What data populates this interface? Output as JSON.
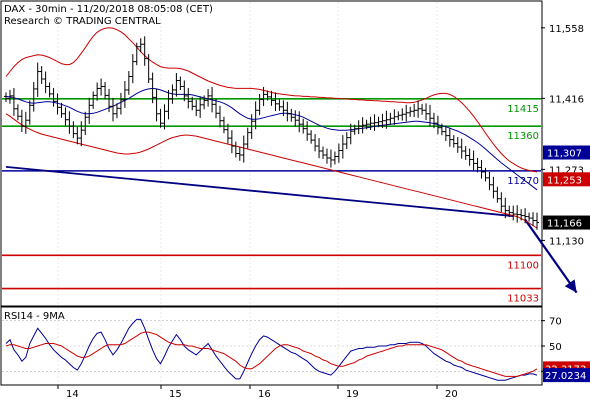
{
  "header": {
    "title": "DAX - 30min - 11/20/2018 08:05:08 (CET)",
    "subtitle": "Research © TRADING CENTRAL"
  },
  "chart_data": [
    {
      "type": "candlestick",
      "panel": "price",
      "x_ticks": [
        "14",
        "15",
        "16",
        "19",
        "20"
      ],
      "y_ticks": [
        11558,
        11416,
        11273,
        11130
      ],
      "y_tick_labels": [
        "11,558",
        "11,416",
        "11,273",
        "11,130"
      ],
      "ylim": [
        11000,
        11610
      ],
      "levels": [
        {
          "label": "11415",
          "value": 11415,
          "color": "#009900"
        },
        {
          "label": "11360",
          "value": 11360,
          "color": "#009900"
        },
        {
          "label": "11270",
          "value": 11270,
          "color": "#000099"
        },
        {
          "label": "11100",
          "value": 11100,
          "color": "#cc0000"
        },
        {
          "label": "11033",
          "value": 11033,
          "color": "#cc0000"
        }
      ],
      "price_tags": [
        {
          "label": "11,307",
          "value": 11307,
          "bg": "#000099",
          "fg": "#ffffff"
        },
        {
          "label": "11,253",
          "value": 11253,
          "bg": "#cc0000",
          "fg": "#ffffff"
        },
        {
          "label": "11,166",
          "value": 11166,
          "bg": "#000000",
          "fg": "#ffffff"
        }
      ],
      "trendline": {
        "from": [
          0,
          11278
        ],
        "to": [
          128,
          11179
        ]
      },
      "forecast_arrow": {
        "from": [
          131,
          11172
        ],
        "to": [
          144,
          11025
        ]
      },
      "closes": [
        11416,
        11421,
        11395,
        11380,
        11360,
        11372,
        11402,
        11435,
        11470,
        11455,
        11440,
        11425,
        11410,
        11398,
        11385,
        11373,
        11360,
        11345,
        11336,
        11352,
        11378,
        11402,
        11422,
        11436,
        11440,
        11422,
        11400,
        11385,
        11396,
        11413,
        11433,
        11460,
        11490,
        11520,
        11525,
        11496,
        11455,
        11418,
        11385,
        11366,
        11390,
        11415,
        11433,
        11452,
        11440,
        11421,
        11410,
        11400,
        11392,
        11403,
        11412,
        11421,
        11404,
        11386,
        11371,
        11353,
        11336,
        11320,
        11305,
        11302,
        11324,
        11347,
        11370,
        11392,
        11414,
        11424,
        11419,
        11412,
        11405,
        11399,
        11392,
        11385,
        11378,
        11372,
        11364,
        11355,
        11344,
        11332,
        11320,
        11310,
        11302,
        11296,
        11292,
        11299,
        11311,
        11324,
        11337,
        11350,
        11355,
        11360,
        11362,
        11364,
        11366,
        11367,
        11369,
        11371,
        11373,
        11376,
        11379,
        11382,
        11384,
        11387,
        11390,
        11392,
        11395,
        11392,
        11385,
        11376,
        11366,
        11357,
        11349,
        11341,
        11333,
        11325,
        11318,
        11310,
        11301,
        11293,
        11285,
        11277,
        11268,
        11256,
        11242,
        11229,
        11214,
        11199,
        11190,
        11186,
        11183,
        11182,
        11180,
        11178,
        11175,
        11170,
        11166
      ],
      "bollinger_upper": [
        11460,
        11470,
        11480,
        11488,
        11494,
        11498,
        11500,
        11502,
        11504,
        11503,
        11501,
        11498,
        11494,
        11490,
        11486,
        11484,
        11484,
        11488,
        11496,
        11507,
        11518,
        11530,
        11541,
        11549,
        11554,
        11557,
        11558,
        11557,
        11554,
        11550,
        11544,
        11536,
        11528,
        11519,
        11510,
        11502,
        11495,
        11489,
        11484,
        11480,
        11478,
        11477,
        11477,
        11477,
        11476,
        11474,
        11471,
        11467,
        11463,
        11459,
        11455,
        11451,
        11448,
        11445,
        11442,
        11440,
        11438,
        11437,
        11436,
        11436,
        11436,
        11436,
        11436,
        11435,
        11434,
        11432,
        11430,
        11428,
        11426,
        11425,
        11424,
        11423,
        11422,
        11421,
        11421,
        11420,
        11420,
        11419,
        11419,
        11418,
        11418,
        11417,
        11417,
        11416,
        11416,
        11415,
        11415,
        11414,
        11414,
        11413,
        11413,
        11412,
        11412,
        11411,
        11411,
        11410,
        11410,
        11409,
        11409,
        11408,
        11408,
        11407,
        11407,
        11408,
        11410,
        11413,
        11416,
        11420,
        11423,
        11425,
        11426,
        11426,
        11424,
        11420,
        11414,
        11407,
        11399,
        11390,
        11380,
        11369,
        11358,
        11346,
        11335,
        11324,
        11314,
        11305,
        11297,
        11290,
        11285,
        11280,
        11276,
        11273,
        11271,
        11269,
        11268
      ],
      "bollinger_lower": [
        11385,
        11380,
        11374,
        11368,
        11363,
        11358,
        11354,
        11350,
        11347,
        11344,
        11342,
        11340,
        11338,
        11336,
        11334,
        11332,
        11330,
        11328,
        11326,
        11324,
        11322,
        11320,
        11318,
        11316,
        11314,
        11312,
        11310,
        11308,
        11306,
        11305,
        11304,
        11304,
        11305,
        11306,
        11308,
        11311,
        11314,
        11318,
        11322,
        11326,
        11330,
        11334,
        11337,
        11339,
        11341,
        11342,
        11342,
        11341,
        11340,
        11338,
        11336,
        11334,
        11332,
        11330,
        11328,
        11326,
        11324,
        11322,
        11320,
        11318,
        11316,
        11314,
        11312,
        11310,
        11308,
        11306,
        11304,
        11302,
        11300,
        11298,
        11296,
        11294,
        11292,
        11290,
        11288,
        11286,
        11284,
        11282,
        11280,
        11278,
        11276,
        11274,
        11272,
        11270,
        11268,
        11266,
        11264,
        11262,
        11260,
        11258,
        11256,
        11254,
        11252,
        11250,
        11248,
        11246,
        11244,
        11242,
        11240,
        11238,
        11236,
        11234,
        11232,
        11230,
        11228,
        11226,
        11224,
        11222,
        11220,
        11218,
        11216,
        11214,
        11212,
        11210,
        11208,
        11206,
        11204,
        11202,
        11200,
        11198,
        11196,
        11194,
        11192,
        11190,
        11188,
        11186,
        11184,
        11182,
        11180,
        11178,
        11174,
        11170,
        11165,
        11160,
        11155
      ],
      "moving_average": [
        11420,
        11419,
        11417,
        11415,
        11412,
        11409,
        11407,
        11406,
        11407,
        11408,
        11409,
        11409,
        11408,
        11406,
        11404,
        11401,
        11398,
        11394,
        11390,
        11387,
        11385,
        11385,
        11386,
        11388,
        11391,
        11394,
        11397,
        11400,
        11404,
        11408,
        11412,
        11416,
        11421,
        11426,
        11430,
        11433,
        11435,
        11436,
        11435,
        11433,
        11430,
        11427,
        11425,
        11424,
        11424,
        11424,
        11424,
        11423,
        11421,
        11419,
        11417,
        11415,
        11413,
        11411,
        11409,
        11406,
        11402,
        11397,
        11391,
        11385,
        11380,
        11376,
        11374,
        11374,
        11375,
        11377,
        11379,
        11381,
        11383,
        11385,
        11386,
        11386,
        11385,
        11383,
        11381,
        11378,
        11374,
        11370,
        11366,
        11362,
        11359,
        11356,
        11354,
        11353,
        11352,
        11352,
        11352,
        11353,
        11354,
        11355,
        11356,
        11357,
        11358,
        11360,
        11361,
        11362,
        11363,
        11364,
        11365,
        11366,
        11367,
        11368,
        11369,
        11370,
        11370,
        11369,
        11368,
        11367,
        11365,
        11363,
        11361,
        11359,
        11356,
        11353,
        11350,
        11346,
        11342,
        11337,
        11332,
        11327,
        11321,
        11314,
        11307,
        11300,
        11293,
        11286,
        11280,
        11274,
        11268,
        11262,
        11256,
        11250,
        11244,
        11238,
        11232
      ]
    },
    {
      "type": "line",
      "panel": "indicator",
      "title": "RSI14 - 9MA",
      "y_ticks": [
        70,
        50,
        30
      ],
      "ylim": [
        20,
        80
      ],
      "price_tags": [
        {
          "label": "32.3173",
          "value": 32.3173,
          "bg": "#cc0000",
          "fg": "#ffffff"
        },
        {
          "label": "27.0234",
          "value": 27.0234,
          "bg": "#000099",
          "fg": "#ffffff"
        }
      ],
      "series": [
        {
          "name": "RSI14",
          "color": "#000099",
          "values": [
            52,
            55,
            47,
            43,
            38,
            41,
            52,
            58,
            64,
            60,
            56,
            51,
            47,
            44,
            41,
            39,
            36,
            33,
            31,
            36,
            43,
            50,
            56,
            60,
            61,
            55,
            48,
            43,
            47,
            52,
            58,
            64,
            68,
            71,
            71,
            64,
            55,
            47,
            40,
            36,
            42,
            49,
            54,
            59,
            55,
            50,
            47,
            45,
            43,
            46,
            49,
            52,
            47,
            42,
            38,
            34,
            30,
            27,
            24,
            24,
            30,
            37,
            44,
            50,
            55,
            58,
            57,
            55,
            53,
            51,
            49,
            47,
            45,
            44,
            42,
            40,
            38,
            35,
            32,
            30,
            29,
            28,
            27,
            30,
            34,
            38,
            42,
            46,
            47,
            48,
            48,
            49,
            49,
            49,
            50,
            50,
            50,
            51,
            51,
            52,
            52,
            52,
            53,
            53,
            53,
            52,
            50,
            47,
            44,
            42,
            40,
            38,
            37,
            35,
            34,
            33,
            31,
            30,
            29,
            28,
            27,
            26,
            25,
            24,
            23,
            23,
            23,
            24,
            25,
            26,
            27,
            27,
            28,
            28,
            27
          ]
        },
        {
          "name": "9MA",
          "color": "#cc0000",
          "values": [
            50,
            51,
            51,
            50,
            49,
            48,
            48,
            49,
            50,
            51,
            52,
            52,
            52,
            51,
            50,
            48,
            46,
            44,
            42,
            41,
            41,
            42,
            44,
            46,
            48,
            50,
            51,
            51,
            51,
            51,
            52,
            54,
            56,
            58,
            60,
            61,
            61,
            60,
            59,
            57,
            55,
            53,
            52,
            51,
            51,
            51,
            50,
            50,
            49,
            48,
            48,
            48,
            47,
            46,
            45,
            44,
            42,
            40,
            38,
            35,
            33,
            32,
            32,
            34,
            36,
            39,
            42,
            45,
            48,
            50,
            51,
            51,
            50,
            49,
            48,
            46,
            45,
            44,
            42,
            41,
            39,
            38,
            36,
            35,
            34,
            34,
            35,
            36,
            37,
            39,
            40,
            42,
            43,
            44,
            45,
            46,
            47,
            48,
            49,
            50,
            50,
            51,
            51,
            51,
            51,
            51,
            51,
            50,
            49,
            48,
            47,
            45,
            43,
            41,
            39,
            38,
            36,
            35,
            34,
            33,
            32,
            31,
            30,
            29,
            28,
            27,
            26,
            26,
            26,
            26,
            27,
            28,
            29,
            30,
            32
          ]
        }
      ]
    }
  ]
}
